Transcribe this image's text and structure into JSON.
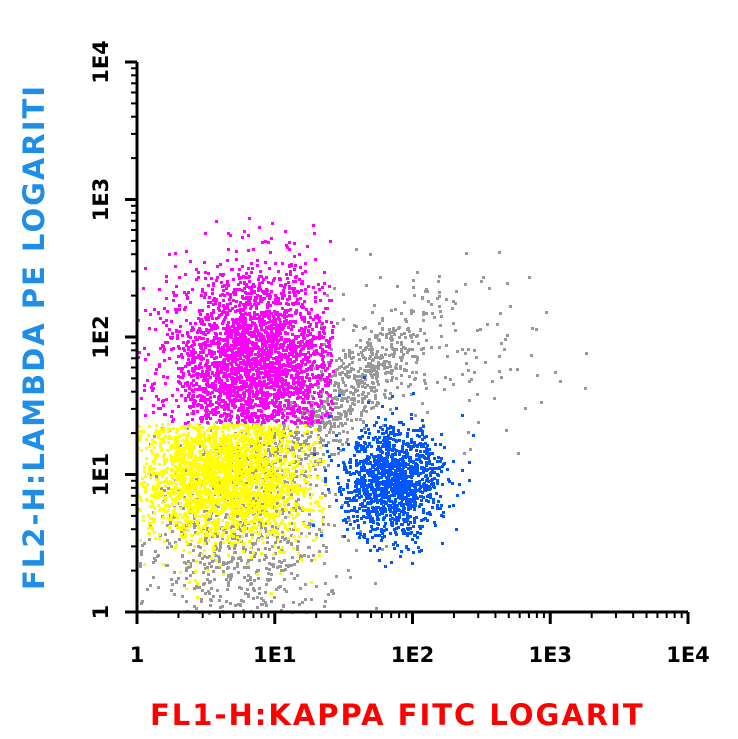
{
  "chart_data": {
    "type": "scatter",
    "title": "",
    "xlabel": "FL1-H:KAPPA FITC LOGARIT",
    "ylabel": "FL2-H:LAMBDA PE LOGARITI",
    "xscale": "log",
    "yscale": "log",
    "xlim": [
      1,
      10000
    ],
    "ylim": [
      1,
      10000
    ],
    "xtick_labels": [
      "1",
      "1E1",
      "1E2",
      "1E3",
      "1E4"
    ],
    "ytick_labels": [
      "1",
      "1E1",
      "1E2",
      "1E3",
      "1E4"
    ],
    "grid": false,
    "legend": "none",
    "series": [
      {
        "color": "#999999",
        "clusters": [
          {
            "center_log": [
              0.75,
              0.55
            ],
            "spread_log": [
              0.35,
              0.45
            ],
            "n": 900
          },
          {
            "center_log": [
              1.5,
              1.6
            ],
            "spread_log": [
              0.35,
              0.35
            ],
            "n": 700,
            "correlated": true
          },
          {
            "center_log": [
              2.1,
              1.9
            ],
            "spread_log": [
              0.45,
              0.3
            ],
            "n": 150
          }
        ]
      },
      {
        "color": "#ff00ff",
        "clusters": [
          {
            "center_log": [
              0.85,
              1.8
            ],
            "spread_log": [
              0.32,
              0.35
            ],
            "n": 3200,
            "x_range": [
              0.0,
              1.42
            ],
            "y_range": [
              1.38,
              2.92
            ]
          }
        ]
      },
      {
        "color": "#ffff00",
        "clusters": [
          {
            "center_log": [
              0.65,
              1.0
            ],
            "spread_log": [
              0.32,
              0.25
            ],
            "n": 2600,
            "x_range": [
              0.0,
              1.38
            ],
            "y_range": [
              0.1,
              1.38
            ]
          }
        ]
      },
      {
        "color": "#0055ff",
        "clusters": [
          {
            "center_log": [
              1.85,
              0.95
            ],
            "spread_log": [
              0.18,
              0.2
            ],
            "n": 1300
          }
        ]
      }
    ]
  },
  "colors": {
    "ylabel": "#1f8ee8",
    "xlabel": "#ff0000",
    "axis": "#000000"
  }
}
